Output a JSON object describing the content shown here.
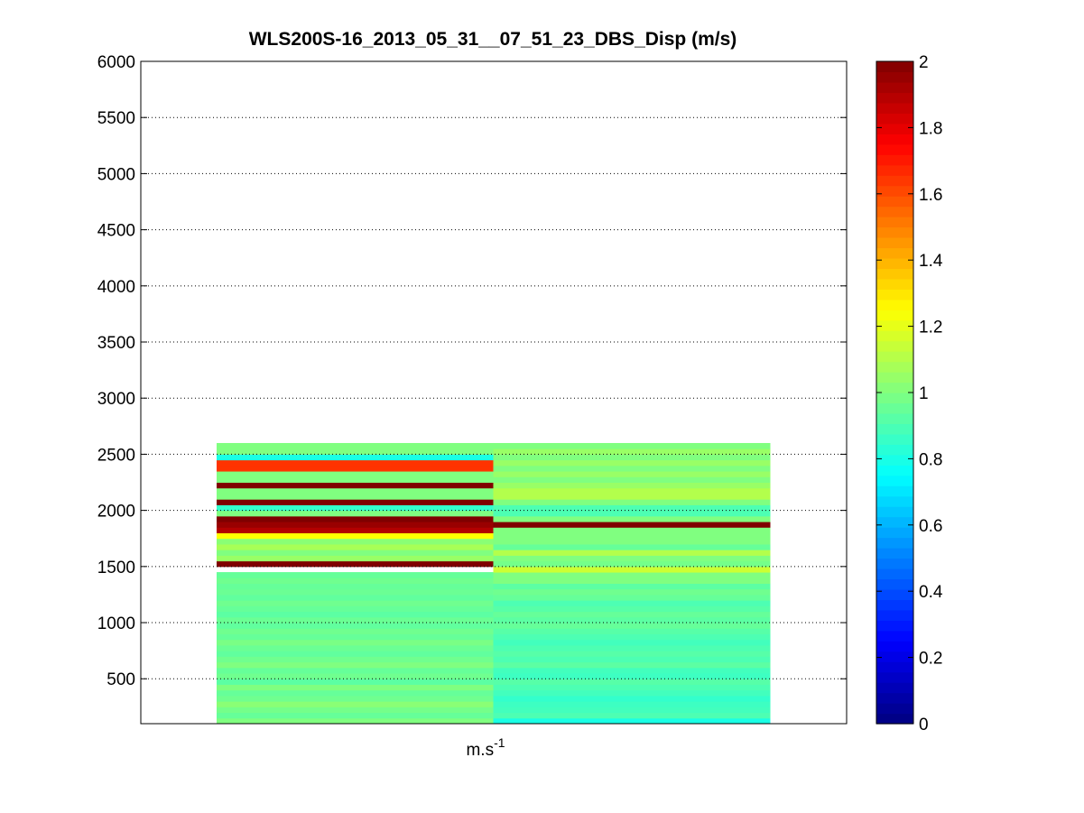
{
  "chart_data": {
    "type": "heatmap",
    "title": "WLS200S-16_2013_05_31__07_51_23_DBS_Disp (m/s)",
    "xlabel": "m.s",
    "xlabel_superscript": "-1",
    "ylabel": "",
    "ylim": [
      100,
      6000
    ],
    "yticks": [
      "500",
      "1000",
      "1500",
      "2000",
      "2500",
      "3000",
      "3500",
      "4000",
      "4500",
      "5000",
      "5500",
      "6000"
    ],
    "grid": true,
    "colormap": "jet",
    "clim": [
      0,
      2
    ],
    "colorbar_ticks": [
      "0",
      "0.2",
      "0.4",
      "0.6",
      "0.8",
      "1",
      "1.2",
      "1.4",
      "1.6",
      "1.8",
      "2"
    ],
    "heights": [
      100,
      150,
      200,
      250,
      300,
      350,
      400,
      450,
      500,
      550,
      600,
      650,
      700,
      750,
      800,
      850,
      900,
      950,
      1000,
      1050,
      1100,
      1150,
      1200,
      1250,
      1300,
      1350,
      1400,
      1450,
      1500,
      1550,
      1600,
      1650,
      1700,
      1750,
      1800,
      1850,
      1900,
      1950,
      2000,
      2050,
      2100,
      2150,
      2200,
      2250,
      2300,
      2350,
      2400,
      2450,
      2500,
      2550
    ],
    "series": [
      {
        "values": [
          1.0,
          0.95,
          0.98,
          1.02,
          0.97,
          0.95,
          1.0,
          0.93,
          0.97,
          0.95,
          1.0,
          0.97,
          0.94,
          0.96,
          0.99,
          0.95,
          0.97,
          0.94,
          0.96,
          0.93,
          0.95,
          0.97,
          0.94,
          0.96,
          0.95,
          0.97,
          0.95,
          null,
          2.0,
          1.05,
          1.0,
          1.08,
          1.02,
          1.25,
          1.9,
          1.95,
          2.0,
          1.0,
          0.85,
          2.0,
          1.0,
          1.0,
          2.0,
          1.0,
          1.0,
          1.65,
          1.65,
          0.8,
          1.0,
          1.0
        ]
      },
      {
        "values": [
          0.8,
          0.9,
          0.88,
          0.87,
          0.85,
          0.88,
          0.9,
          0.92,
          0.87,
          0.88,
          0.93,
          0.9,
          0.92,
          0.9,
          0.88,
          0.9,
          0.92,
          0.95,
          0.93,
          0.95,
          0.92,
          0.9,
          0.95,
          0.97,
          0.93,
          1.0,
          1.0,
          1.15,
          0.98,
          1.0,
          1.1,
          0.95,
          1.0,
          1.0,
          1.0,
          2.0,
          1.0,
          0.9,
          0.9,
          1.0,
          1.1,
          1.1,
          1.05,
          1.0,
          1.05,
          1.0,
          1.05,
          1.0,
          1.05,
          1.0
        ]
      }
    ]
  }
}
